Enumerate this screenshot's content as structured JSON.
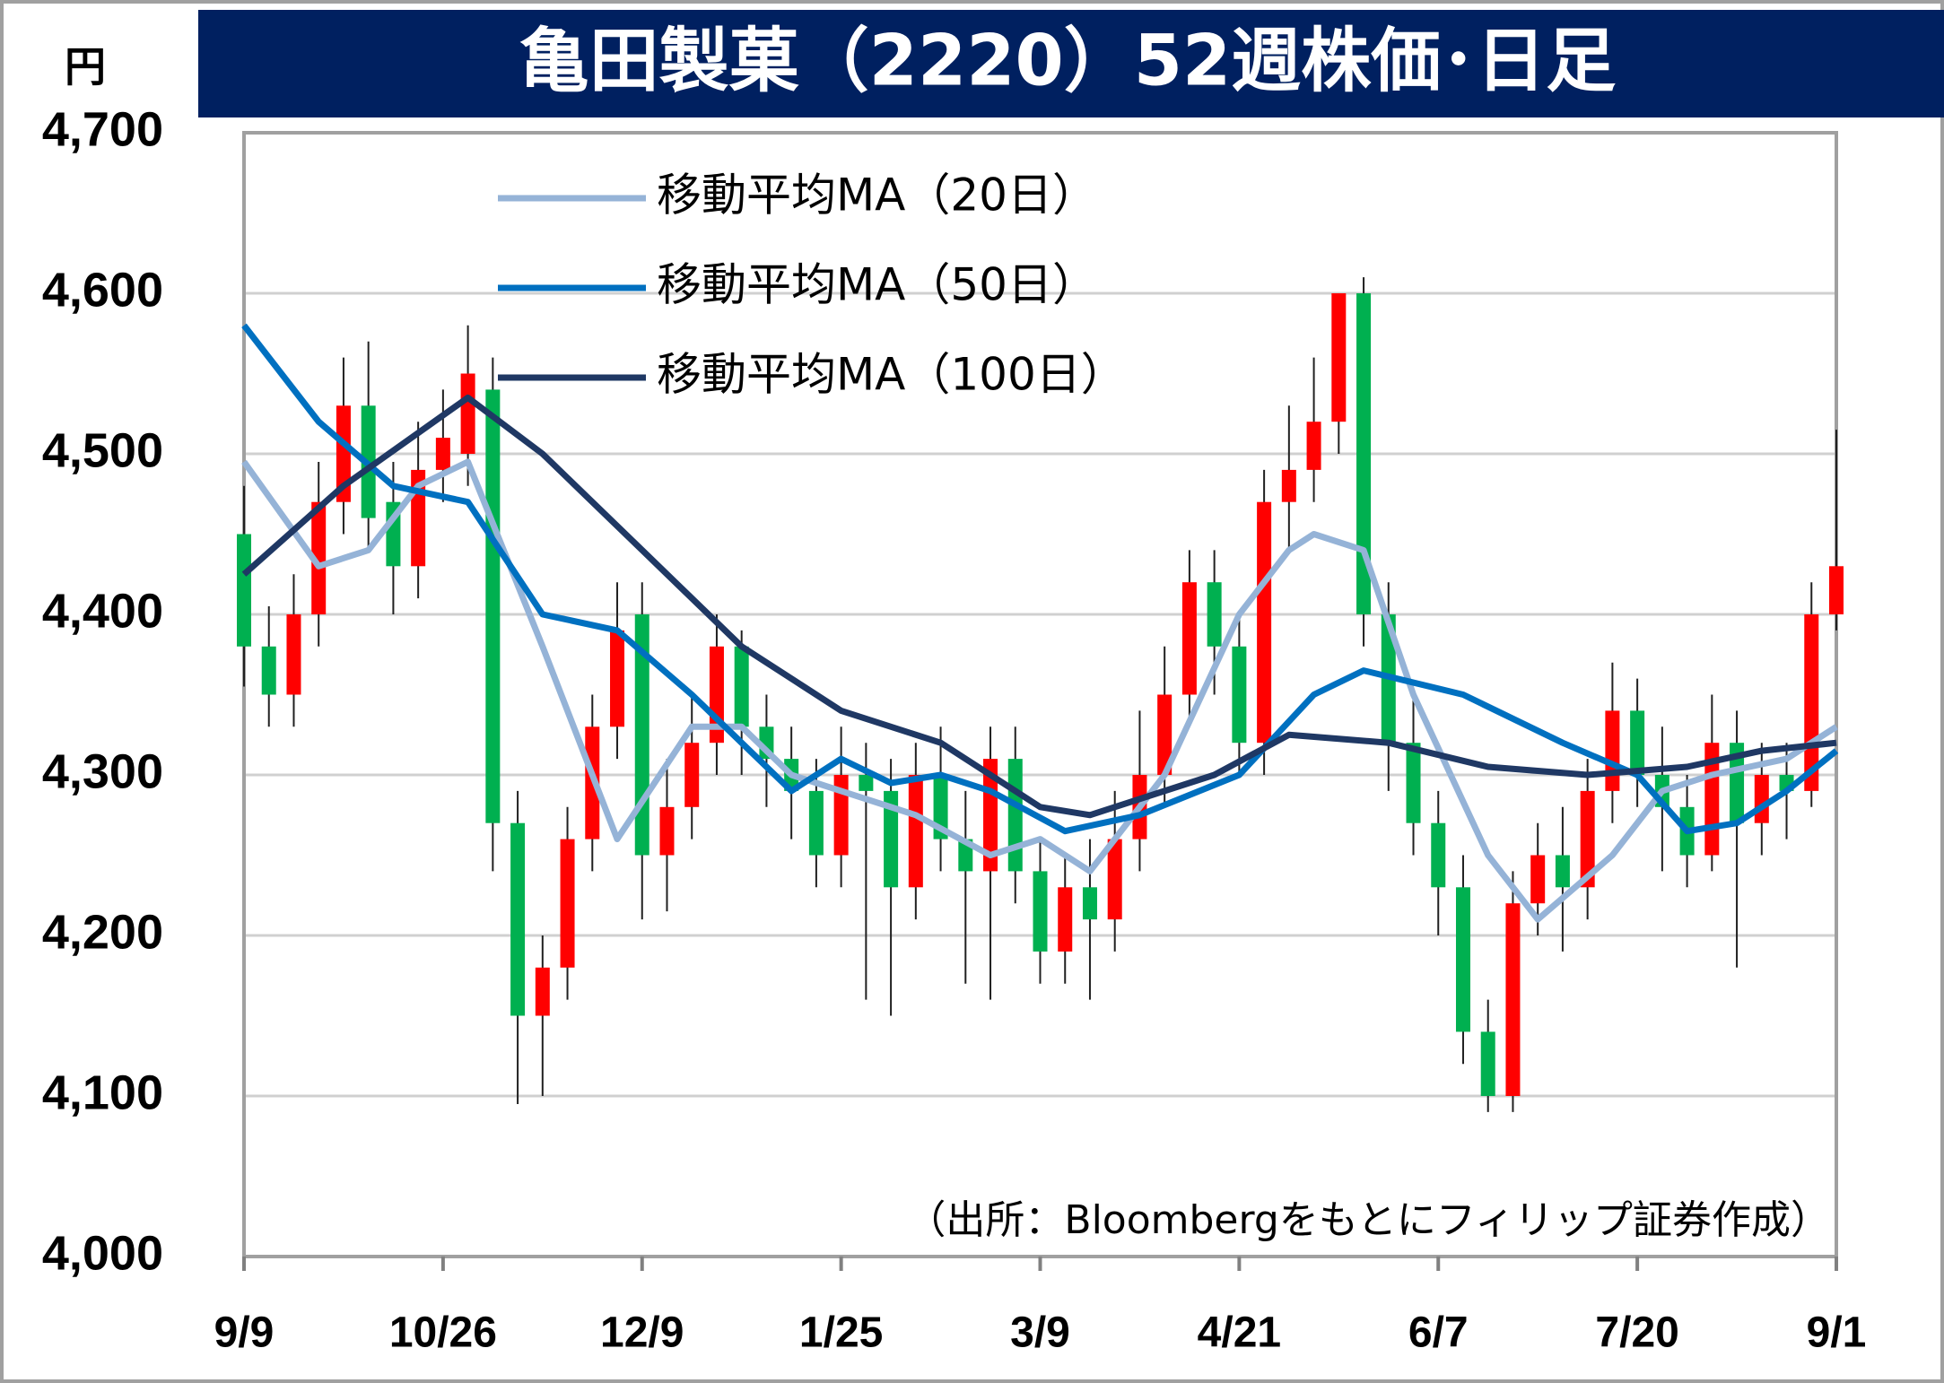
{
  "chart_data": {
    "type": "candlestick",
    "title": "亀田製菓（2220）52週株価･日足",
    "y_unit": "円",
    "source": "（出所：Bloombergをもとにフィリップ証券作成）",
    "ylim": [
      4000,
      4700
    ],
    "yticks": [
      {
        "value": 4000,
        "label": "4,000"
      },
      {
        "value": 4100,
        "label": "4,100"
      },
      {
        "value": 4200,
        "label": "4,200"
      },
      {
        "value": 4300,
        "label": "4,300"
      },
      {
        "value": 4400,
        "label": "4,400"
      },
      {
        "value": 4500,
        "label": "4,500"
      },
      {
        "value": 4600,
        "label": "4,600"
      },
      {
        "value": 4700,
        "label": "4,700"
      }
    ],
    "xlim": [
      0,
      64
    ],
    "xticks": [
      {
        "value": 0,
        "label": "9/9"
      },
      {
        "value": 8,
        "label": "10/26"
      },
      {
        "value": 16,
        "label": "12/9"
      },
      {
        "value": 24,
        "label": "1/25"
      },
      {
        "value": 32,
        "label": "3/9"
      },
      {
        "value": 40,
        "label": "4/21"
      },
      {
        "value": 48,
        "label": "6/7"
      },
      {
        "value": 56,
        "label": "7/20"
      },
      {
        "value": 64,
        "label": "9/1"
      }
    ],
    "grid": true,
    "up_color": "#ff0000",
    "down_color": "#00b050",
    "candles": {
      "open": [
        4450,
        4380,
        4350,
        4400,
        4470,
        4530,
        4470,
        4430,
        4490,
        4500,
        4540,
        4270,
        4150,
        4180,
        4260,
        4330,
        4400,
        4250,
        4280,
        4320,
        4380,
        4330,
        4310,
        4290,
        4250,
        4300,
        4290,
        4230,
        4300,
        4260,
        4240,
        4310,
        4240,
        4190,
        4230,
        4210,
        4260,
        4300,
        4350,
        4420,
        4380,
        4320,
        4470,
        4490,
        4520,
        4600,
        4400,
        4320,
        4270,
        4230,
        4140,
        4100,
        4220,
        4250,
        4230,
        4290,
        4340,
        4300,
        4280,
        4250,
        4320,
        4270,
        4300,
        4290,
        4400
      ],
      "high": [
        4480,
        4405,
        4425,
        4495,
        4560,
        4570,
        4495,
        4520,
        4540,
        4580,
        4560,
        4290,
        4200,
        4280,
        4350,
        4420,
        4420,
        4310,
        4350,
        4400,
        4390,
        4350,
        4330,
        4310,
        4330,
        4320,
        4310,
        4320,
        4330,
        4290,
        4330,
        4330,
        4260,
        4250,
        4260,
        4290,
        4340,
        4380,
        4440,
        4440,
        4400,
        4490,
        4530,
        4560,
        4600,
        4610,
        4420,
        4350,
        4290,
        4250,
        4160,
        4240,
        4270,
        4280,
        4310,
        4370,
        4360,
        4330,
        4300,
        4350,
        4340,
        4320,
        4320,
        4420,
        4515
      ],
      "low": [
        4355,
        4330,
        4330,
        4380,
        4450,
        4440,
        4400,
        4410,
        4470,
        4480,
        4240,
        4095,
        4100,
        4160,
        4240,
        4310,
        4210,
        4215,
        4260,
        4300,
        4300,
        4280,
        4260,
        4230,
        4230,
        4160,
        4150,
        4210,
        4240,
        4170,
        4160,
        4220,
        4170,
        4170,
        4160,
        4190,
        4240,
        4280,
        4330,
        4350,
        4300,
        4300,
        4440,
        4470,
        4500,
        4380,
        4290,
        4250,
        4200,
        4120,
        4090,
        4090,
        4200,
        4190,
        4210,
        4270,
        4280,
        4240,
        4230,
        4240,
        4180,
        4250,
        4260,
        4280,
        4390
      ],
      "close": [
        4380,
        4350,
        4400,
        4470,
        4530,
        4460,
        4430,
        4490,
        4510,
        4550,
        4270,
        4150,
        4180,
        4260,
        4330,
        4390,
        4250,
        4280,
        4320,
        4380,
        4330,
        4310,
        4290,
        4250,
        4300,
        4290,
        4230,
        4300,
        4260,
        4240,
        4310,
        4240,
        4190,
        4230,
        4210,
        4260,
        4300,
        4350,
        4420,
        4380,
        4320,
        4470,
        4490,
        4520,
        4600,
        4400,
        4320,
        4270,
        4230,
        4140,
        4100,
        4220,
        4250,
        4230,
        4290,
        4340,
        4300,
        4280,
        4250,
        4320,
        4270,
        4300,
        4290,
        4400,
        4430
      ]
    },
    "series": [
      {
        "name": "移動平均MA（20日）",
        "color": "#95b3d7",
        "x": [
          0,
          3,
          5,
          7,
          9,
          12,
          15,
          18,
          20,
          22,
          24,
          27,
          30,
          32,
          34,
          37,
          40,
          42,
          43,
          45,
          47,
          50,
          52,
          55,
          57,
          59,
          62,
          64
        ],
        "values": [
          4495,
          4430,
          4440,
          4480,
          4495,
          4380,
          4260,
          4330,
          4330,
          4300,
          4290,
          4275,
          4250,
          4260,
          4240,
          4300,
          4400,
          4440,
          4450,
          4440,
          4350,
          4250,
          4210,
          4250,
          4290,
          4300,
          4310,
          4330
        ]
      },
      {
        "name": "移動平均MA（50日）",
        "color": "#0070c0",
        "x": [
          0,
          3,
          6,
          9,
          12,
          15,
          18,
          20,
          22,
          24,
          26,
          28,
          30,
          33,
          36,
          40,
          43,
          45,
          49,
          53,
          56,
          58,
          60,
          62,
          64
        ],
        "values": [
          4580,
          4520,
          4480,
          4470,
          4400,
          4390,
          4350,
          4320,
          4290,
          4310,
          4295,
          4300,
          4290,
          4265,
          4275,
          4300,
          4350,
          4365,
          4350,
          4320,
          4300,
          4265,
          4270,
          4290,
          4315
        ]
      },
      {
        "name": "移動平均MA（100日）",
        "color": "#1f3864",
        "x": [
          0,
          4,
          9,
          12,
          16,
          20,
          24,
          28,
          32,
          34,
          35,
          39,
          42,
          46,
          50,
          54,
          58,
          61,
          64
        ],
        "values": [
          4425,
          4480,
          4535,
          4500,
          4440,
          4380,
          4340,
          4320,
          4280,
          4275,
          4280,
          4300,
          4325,
          4320,
          4305,
          4300,
          4305,
          4315,
          4320
        ]
      }
    ]
  }
}
